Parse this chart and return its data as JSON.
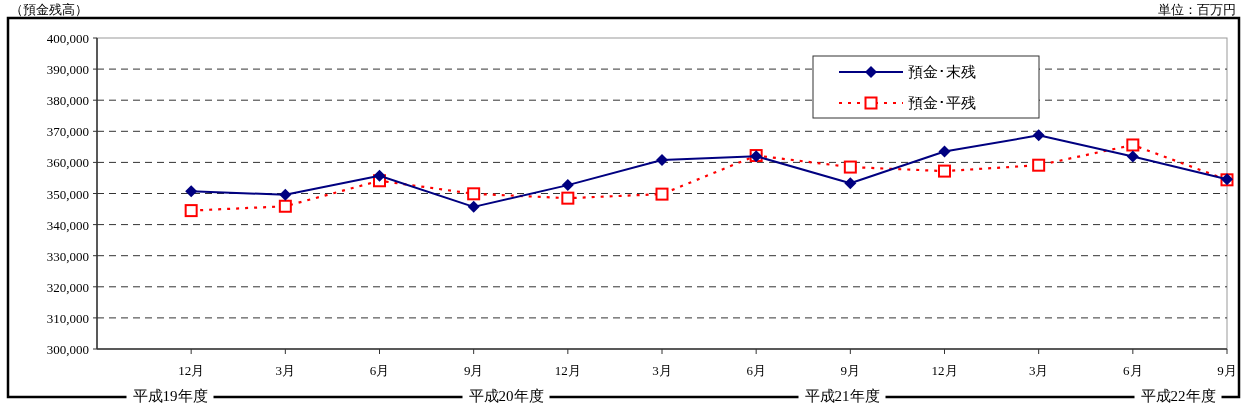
{
  "chart_data": {
    "type": "line",
    "categories": [
      "12月",
      "3月",
      "6月",
      "9月",
      "12月",
      "3月",
      "6月",
      "9月",
      "12月",
      "3月",
      "6月",
      "9月"
    ],
    "series": [
      {
        "name": "預金･末残",
        "color": "#000080",
        "marker": "diamond",
        "line_style": "solid",
        "values": [
          350700,
          349600,
          355700,
          345700,
          352700,
          360800,
          362000,
          353300,
          363500,
          368700,
          361900,
          354600
        ]
      },
      {
        "name": "預金･平残",
        "color": "#ff0000",
        "marker": "square",
        "line_style": "dotted",
        "values": [
          344500,
          345900,
          354100,
          349900,
          348500,
          349800,
          362200,
          358500,
          357200,
          359100,
          365600,
          354400
        ]
      }
    ],
    "ylim": [
      300000,
      400000
    ],
    "yticks": [
      {
        "value": 300000,
        "label": "300,000"
      },
      {
        "value": 310000,
        "label": "310,000"
      },
      {
        "value": 320000,
        "label": "320,000"
      },
      {
        "value": 330000,
        "label": "330,000"
      },
      {
        "value": 340000,
        "label": "340,000"
      },
      {
        "value": 350000,
        "label": "350,000"
      },
      {
        "value": 360000,
        "label": "360,000"
      },
      {
        "value": 370000,
        "label": "370,000"
      },
      {
        "value": 380000,
        "label": "380,000"
      },
      {
        "value": 390000,
        "label": "390,000"
      },
      {
        "value": 400000,
        "label": "400,000"
      }
    ],
    "grid": "y",
    "legend": "top right",
    "annotations": [
      "（預金残高）",
      "単位：百万円",
      "平成19年度",
      "平成20年度",
      "平成21年度",
      "平成22年度"
    ]
  }
}
